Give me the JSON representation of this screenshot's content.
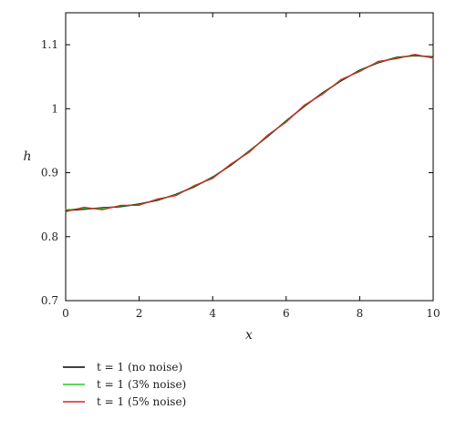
{
  "chart_data": {
    "type": "line",
    "title": "",
    "xlabel": "x",
    "ylabel": "h",
    "xlim": [
      0,
      10
    ],
    "ylim": [
      0.7,
      1.15
    ],
    "x_ticks": [
      0,
      2,
      4,
      6,
      8,
      10
    ],
    "y_ticks": [
      0.7,
      0.8,
      0.9,
      1,
      1.1
    ],
    "x_tick_labels": [
      "0",
      "2",
      "4",
      "6",
      "8",
      "10"
    ],
    "y_tick_labels": [
      "0.7",
      "0.8",
      "0.9",
      "1",
      "1.1"
    ],
    "grid": false,
    "legend_position": "below",
    "x": [
      0,
      0.5,
      1,
      1.5,
      2,
      2.5,
      3,
      3.5,
      4,
      4.5,
      5,
      5.5,
      6,
      6.5,
      7,
      7.5,
      8,
      8.5,
      9,
      9.5,
      10
    ],
    "series": [
      {
        "name": "t = 1 (no noise)",
        "legend_label": "t = 1 (no noise)",
        "color": "#000000",
        "values": [
          0.841,
          0.843,
          0.845,
          0.847,
          0.851,
          0.857,
          0.866,
          0.878,
          0.893,
          0.912,
          0.934,
          0.957,
          0.981,
          1.004,
          1.025,
          1.044,
          1.06,
          1.072,
          1.08,
          1.083,
          1.081
        ]
      },
      {
        "name": "t = 1 (3% noise)",
        "legend_label": "t = 1 (3% noise)",
        "color": "#22cc22",
        "values": [
          0.842,
          0.844,
          0.844,
          0.848,
          0.85,
          0.858,
          0.865,
          0.879,
          0.892,
          0.913,
          0.933,
          0.958,
          0.98,
          1.005,
          1.024,
          1.045,
          1.059,
          1.073,
          1.079,
          1.084,
          1.08
        ]
      },
      {
        "name": "t = 1 (5% noise)",
        "legend_label": "t = 1 (5% noise)",
        "color": "#dd2222",
        "values": [
          0.839,
          0.846,
          0.842,
          0.849,
          0.849,
          0.859,
          0.864,
          0.88,
          0.891,
          0.914,
          0.932,
          0.959,
          0.979,
          1.006,
          1.023,
          1.046,
          1.058,
          1.074,
          1.078,
          1.085,
          1.079
        ]
      }
    ]
  }
}
